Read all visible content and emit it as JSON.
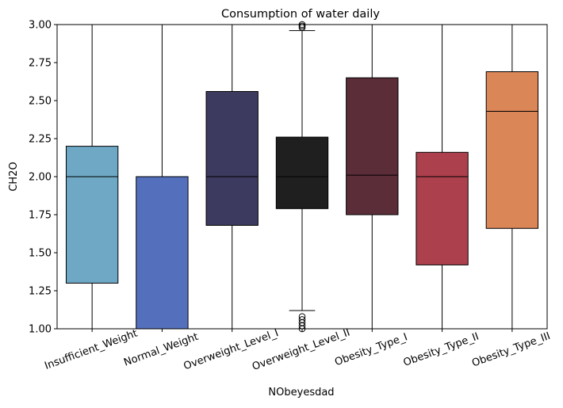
{
  "chart_data": {
    "type": "box",
    "title": "Consumption of water daily",
    "xlabel": "NObeyesdad",
    "ylabel": "CH2O",
    "ylim": [
      1.0,
      3.0
    ],
    "yticks": [
      1.0,
      1.25,
      1.5,
      1.75,
      2.0,
      2.25,
      2.5,
      2.75,
      3.0
    ],
    "ytick_labels": [
      "1.00",
      "1.25",
      "1.50",
      "1.75",
      "2.00",
      "2.25",
      "2.50",
      "2.75",
      "3.00"
    ],
    "categories": [
      "Insufficient_Weight",
      "Normal_Weight",
      "Overweight_Level_I",
      "Overweight_Level_II",
      "Obesity_Type_I",
      "Obesity_Type_II",
      "Obesity_Type_III"
    ],
    "boxes": [
      {
        "q1": 1.3,
        "median": 2.0,
        "q3": 2.2,
        "whisker_low": 1.0,
        "whisker_high": 3.0,
        "outliers": [],
        "color": "#6ea8c5"
      },
      {
        "q1": 1.0,
        "median": 2.0,
        "q3": 2.0,
        "whisker_low": 1.0,
        "whisker_high": 3.0,
        "outliers": [],
        "color": "#5470bd"
      },
      {
        "q1": 1.68,
        "median": 2.0,
        "q3": 2.56,
        "whisker_low": 1.0,
        "whisker_high": 3.0,
        "outliers": [],
        "color": "#3c3a5e"
      },
      {
        "q1": 1.79,
        "median": 2.0,
        "q3": 2.26,
        "whisker_low": 1.12,
        "whisker_high": 2.96,
        "outliers": [
          1.0,
          1.02,
          1.04,
          1.06,
          1.08,
          2.98,
          2.99,
          3.0
        ],
        "color": "#1f1f1f"
      },
      {
        "q1": 1.75,
        "median": 2.01,
        "q3": 2.65,
        "whisker_low": 1.0,
        "whisker_high": 3.0,
        "outliers": [],
        "color": "#5b2d38"
      },
      {
        "q1": 1.42,
        "median": 2.0,
        "q3": 2.16,
        "whisker_low": 1.0,
        "whisker_high": 3.0,
        "outliers": [],
        "color": "#ac404c"
      },
      {
        "q1": 1.66,
        "median": 2.43,
        "q3": 2.69,
        "whisker_low": 1.0,
        "whisker_high": 3.0,
        "outliers": [],
        "color": "#db8657"
      }
    ],
    "grid": false,
    "legend": "none"
  }
}
